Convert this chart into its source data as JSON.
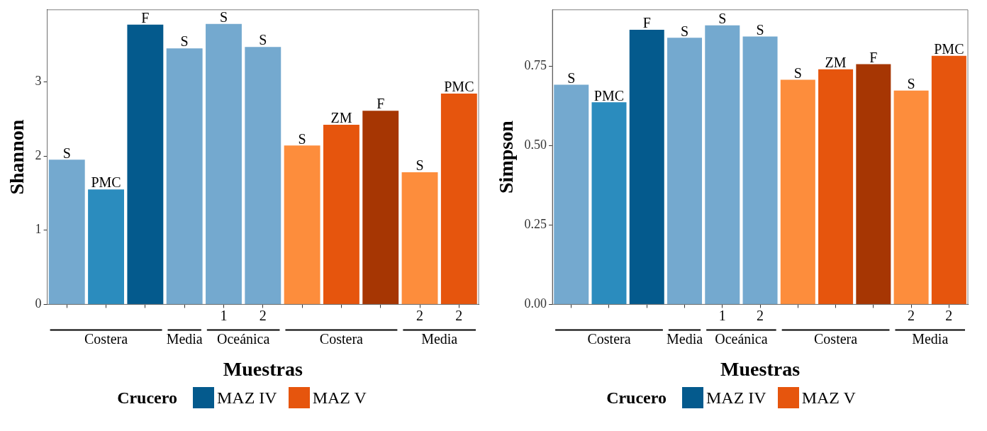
{
  "chart_data": [
    {
      "type": "bar",
      "xlabel": "Muestras",
      "ylabel": "Shannon",
      "legend_title": "Crucero",
      "legend": "bottom",
      "stacked": true,
      "categories": [
        null,
        null,
        null,
        null,
        "1",
        "2",
        null,
        null,
        null,
        "2",
        "2"
      ],
      "annotations": [
        "Costera",
        "Media",
        "Oceánica",
        "Costera",
        "Media"
      ],
      "ylim": [
        0,
        3.97
      ],
      "yticks": [
        0,
        1,
        2,
        3
      ],
      "series": [
        {
          "name": "MAZ IV",
          "color": "#045a8d",
          "values": [
            1.95,
            1.55,
            3.77,
            3.45,
            3.78,
            3.47,
            null,
            null,
            null,
            null,
            null
          ],
          "colors": [
            "#74a9cf",
            "#2b8cbe",
            "#045a8d",
            "#74a9cf",
            "#74a9cf",
            "#74a9cf",
            null,
            null,
            null,
            null,
            null
          ],
          "value_labels": [
            "S",
            "PMC",
            "F",
            "S",
            "S",
            "S",
            null,
            null,
            null,
            null,
            null
          ]
        },
        {
          "name": "MAZ V",
          "color": "#e6550d",
          "values": [
            null,
            null,
            null,
            null,
            null,
            null,
            2.14,
            2.42,
            2.61,
            1.78,
            2.84
          ],
          "colors": [
            null,
            null,
            null,
            null,
            null,
            null,
            "#fd8d3c",
            "#e6550d",
            "#a63603",
            "#fd8d3c",
            "#e6550d"
          ],
          "value_labels": [
            null,
            null,
            null,
            null,
            null,
            null,
            "S",
            "ZM",
            "F",
            "S",
            "PMC"
          ]
        }
      ]
    },
    {
      "type": "bar",
      "xlabel": "Muestras",
      "ylabel": "Simpson",
      "legend_title": "Crucero",
      "legend": "bottom",
      "stacked": true,
      "categories": [
        null,
        null,
        null,
        null,
        "1",
        "2",
        null,
        null,
        null,
        "2",
        "2"
      ],
      "annotations": [
        "Costera",
        "Media",
        "Oceánica",
        "Costera",
        "Media"
      ],
      "ylim": [
        0,
        0.927
      ],
      "yticks": [
        {
          "value": 0,
          "label": "0.00"
        },
        {
          "value": 0.25,
          "label": "0.25"
        },
        {
          "value": 0.5,
          "label": "0.50"
        },
        {
          "value": 0.75,
          "label": "0.75"
        }
      ],
      "series": [
        {
          "name": "MAZ IV",
          "color": "#045a8d",
          "values": [
            0.691,
            0.636,
            0.864,
            0.839,
            0.878,
            0.843,
            null,
            null,
            null,
            null,
            null
          ],
          "colors": [
            "#74a9cf",
            "#2b8cbe",
            "#045a8d",
            "#74a9cf",
            "#74a9cf",
            "#74a9cf",
            null,
            null,
            null,
            null,
            null
          ],
          "value_labels": [
            "S",
            "PMC",
            "F",
            "S",
            "S",
            "S",
            null,
            null,
            null,
            null,
            null
          ]
        },
        {
          "name": "MAZ V",
          "color": "#e6550d",
          "values": [
            null,
            null,
            null,
            null,
            null,
            null,
            0.707,
            0.74,
            0.756,
            0.673,
            0.782
          ],
          "colors": [
            null,
            null,
            null,
            null,
            null,
            null,
            "#fd8d3c",
            "#e6550d",
            "#a63603",
            "#fd8d3c",
            "#e6550d"
          ],
          "value_labels": [
            null,
            null,
            null,
            null,
            null,
            null,
            "S",
            "ZM",
            "F",
            "S",
            "PMC"
          ]
        }
      ]
    }
  ]
}
